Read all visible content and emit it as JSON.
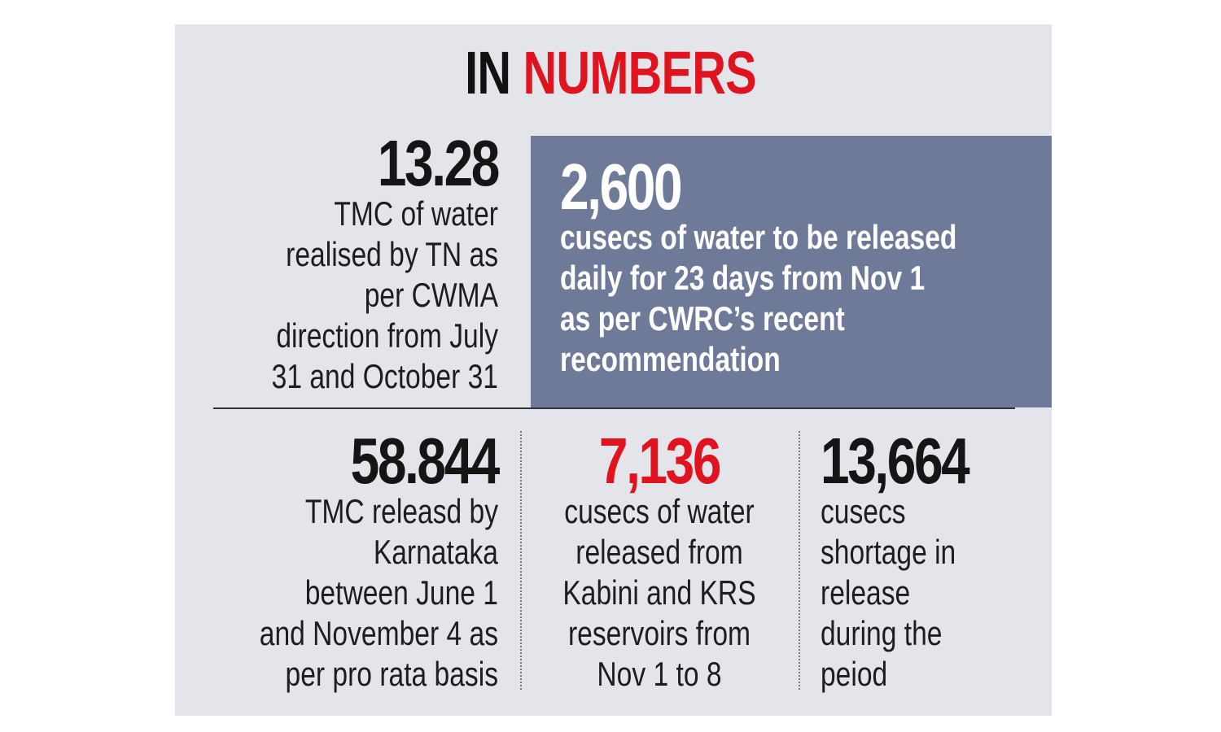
{
  "title": {
    "part1": "IN",
    "part2": "NUMBERS"
  },
  "stats": [
    {
      "value": "13.28",
      "lines": [
        "TMC of water",
        "realised by TN as",
        "per CWMA",
        "direction from July",
        "31 and October 31"
      ]
    },
    {
      "value": "2,600",
      "lines": [
        "cusecs of water to be released",
        "daily for 23 days from Nov 1",
        "as  per CWRC’s recent",
        "recommendation"
      ]
    },
    {
      "value": "58.844",
      "lines": [
        "TMC releasd by",
        "Karnataka",
        "between June 1",
        "and November 4 as",
        "per pro rata basis"
      ]
    },
    {
      "value": "7,136",
      "lines": [
        "cusecs of water",
        "released from",
        "Kabini and KRS",
        "reservoirs from",
        "Nov 1 to 8"
      ]
    },
    {
      "value": "13,664",
      "lines": [
        "cusecs",
        "shortage in",
        "release",
        "during the",
        "peiod"
      ]
    }
  ],
  "colors": {
    "background": "#e4e5ea",
    "panel": "#6f7a99",
    "accent": "#e0141e"
  }
}
